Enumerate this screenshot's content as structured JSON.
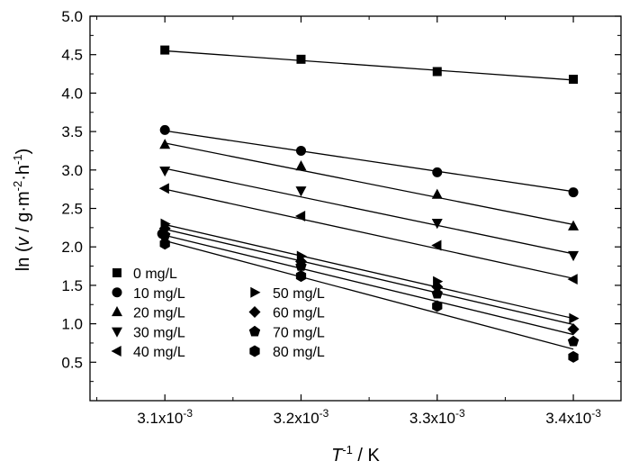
{
  "chart_data": {
    "type": "scatter",
    "title": "",
    "xlabel": {
      "italic": "T",
      "sup": "-1",
      "rest": " / K"
    },
    "ylabel": {
      "pre": "ln (",
      "italic": "v",
      "mid": " / g·m",
      "sup1": "-2",
      "mid2": "·h",
      "sup2": "-1",
      "post": ")"
    },
    "xlim": [
      0.003045,
      0.003435
    ],
    "ylim": [
      0.0,
      5.0
    ],
    "x_ticks": [
      {
        "value": 0.0031,
        "base": "3.1x10",
        "exp": "-3"
      },
      {
        "value": 0.0032,
        "base": "3.2x10",
        "exp": "-3"
      },
      {
        "value": 0.0033,
        "base": "3.3x10",
        "exp": "-3"
      },
      {
        "value": 0.0034,
        "base": "3.4x10",
        "exp": "-3"
      }
    ],
    "y_ticks": [
      0.5,
      1.0,
      1.5,
      2.0,
      2.5,
      3.0,
      3.5,
      4.0,
      4.5,
      5.0
    ],
    "y_tick_labels": [
      "0.5",
      "1.0",
      "1.5",
      "2.0",
      "2.5",
      "3.0",
      "3.5",
      "4.0",
      "4.5",
      "5.0"
    ],
    "grid": false,
    "legend_position": "bottom-left",
    "series": [
      {
        "name": "0 mg/L",
        "marker": "square",
        "x": [
          0.0031,
          0.0032,
          0.0033,
          0.0034
        ],
        "values": [
          4.56,
          4.44,
          4.28,
          4.18
        ],
        "fit": [
          4.55,
          4.17
        ]
      },
      {
        "name": "10 mg/L",
        "marker": "circle",
        "x": [
          0.0031,
          0.0032,
          0.0033,
          0.0034
        ],
        "values": [
          3.52,
          3.25,
          2.97,
          2.71
        ],
        "fit": [
          3.51,
          2.72
        ]
      },
      {
        "name": "20 mg/L",
        "marker": "triangle-up",
        "x": [
          0.0031,
          0.0032,
          0.0033,
          0.0034
        ],
        "values": [
          3.33,
          3.05,
          2.68,
          2.27
        ],
        "fit": [
          3.35,
          2.29
        ]
      },
      {
        "name": "30 mg/L",
        "marker": "triangle-down",
        "x": [
          0.0031,
          0.0032,
          0.0033,
          0.0034
        ],
        "values": [
          2.99,
          2.73,
          2.31,
          1.89
        ],
        "fit": [
          3.02,
          1.91
        ]
      },
      {
        "name": "40 mg/L",
        "marker": "triangle-left",
        "x": [
          0.0031,
          0.0032,
          0.0033,
          0.0034
        ],
        "values": [
          2.76,
          2.4,
          2.02,
          1.58
        ],
        "fit": [
          2.75,
          1.59
        ]
      },
      {
        "name": "50 mg/L",
        "marker": "triangle-right",
        "x": [
          0.0031,
          0.0032,
          0.0033,
          0.0034
        ],
        "values": [
          2.3,
          1.88,
          1.55,
          1.07
        ],
        "fit": [
          2.29,
          1.07
        ]
      },
      {
        "name": "60 mg/L",
        "marker": "diamond",
        "x": [
          0.0031,
          0.0032,
          0.0033,
          0.0034
        ],
        "values": [
          2.24,
          1.81,
          1.48,
          0.93
        ],
        "fit": [
          2.23,
          0.99
        ]
      },
      {
        "name": "70 mg/L",
        "marker": "pentagon",
        "x": [
          0.0031,
          0.0032,
          0.0033,
          0.0034
        ],
        "values": [
          2.15,
          1.75,
          1.39,
          0.77
        ],
        "fit": [
          2.15,
          0.86
        ]
      },
      {
        "name": "80 mg/L",
        "marker": "hexagon",
        "x": [
          0.0031,
          0.0032,
          0.0033,
          0.0034
        ],
        "values": [
          2.04,
          1.62,
          1.23,
          0.57
        ],
        "fit": [
          2.08,
          0.67
        ]
      }
    ],
    "extra_points": [
      {
        "series": "10 mg/L",
        "marker": "circle",
        "x": 0.003098,
        "value": 2.17
      }
    ]
  }
}
